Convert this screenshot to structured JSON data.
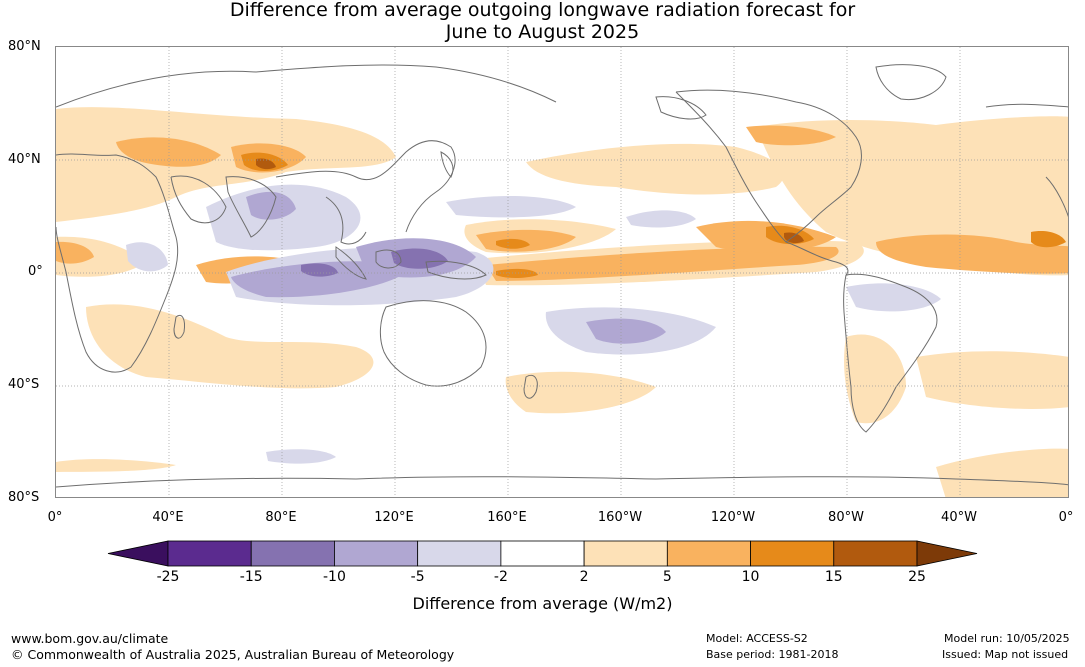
{
  "title": {
    "line1": "Difference from average outgoing longwave radiation forecast for",
    "line2": "June to August 2025"
  },
  "map": {
    "type": "contour-map",
    "projection": "equirectangular, Pacific-centred (0° to 360°)",
    "y_axis_labels": [
      "80°N",
      "40°N",
      "0°",
      "40°S",
      "80°S"
    ],
    "x_axis_labels": [
      "0°",
      "40°E",
      "80°E",
      "120°E",
      "160°E",
      "160°W",
      "120°W",
      "80°W",
      "40°W",
      "0°"
    ],
    "gridlines": true,
    "colors": {
      "coast": "#6e6e6e",
      "grid": "#9a9a9a",
      "neg_2_5": "#d8d8ea",
      "neg_5_10": "#b0a7d2",
      "neg_10_15": "#8572b0",
      "pos_2_5": "#fde1b7",
      "pos_5_10": "#f9b25f",
      "pos_10_15": "#e68a1a",
      "pos_15_25": "#b15a0e"
    }
  },
  "colorbar": {
    "label": "Difference from average (W/m2)",
    "ticks": [
      "-25",
      "-15",
      "-10",
      "-5",
      "-2",
      "2",
      "5",
      "10",
      "15",
      "25"
    ],
    "colors": [
      "#3a0f5e",
      "#5b2b8f",
      "#8572b0",
      "#b0a7d2",
      "#d8d8ea",
      "#ffffff",
      "#fde1b7",
      "#f9b25f",
      "#e68a1a",
      "#b15a0e",
      "#7d3a08"
    ]
  },
  "footer": {
    "site": "www.bom.gov.au/climate",
    "copyright": "© Commonwealth of Australia 2025, Australian Bureau of Meteorology",
    "model": "Model: ACCESS-S2",
    "base_period": "Base period: 1981-2018",
    "model_run": "Model run: 10/05/2025",
    "issued": "Issued: Map not issued"
  }
}
